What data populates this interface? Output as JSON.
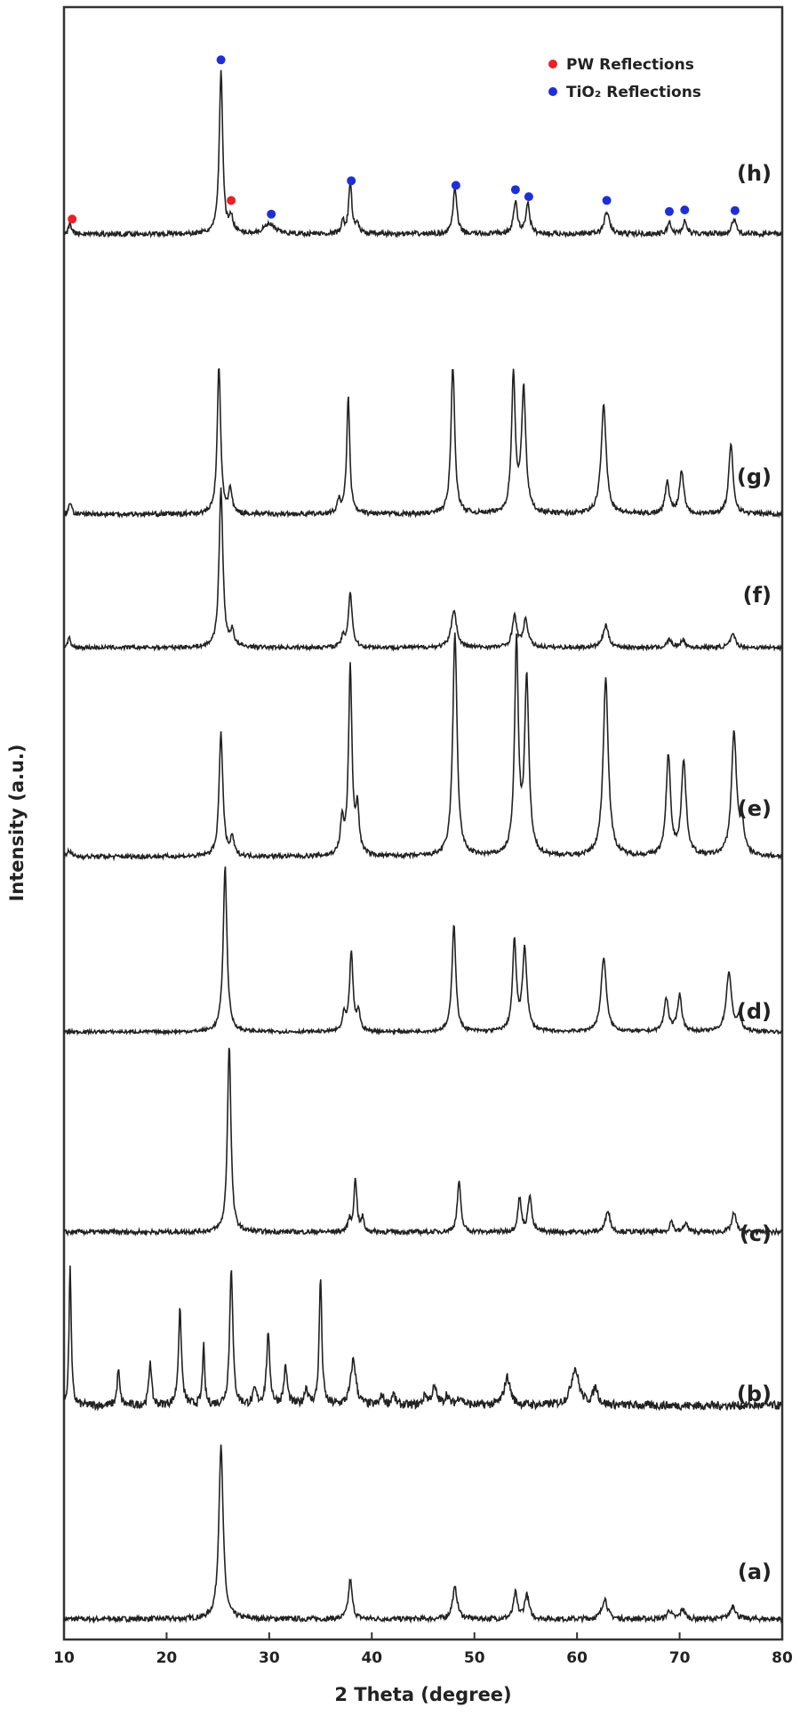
{
  "chart_data": {
    "type": "line",
    "xlabel": "2 Theta (degree)",
    "ylabel": "Intensity (a.u.)",
    "xlim": [
      10,
      80
    ],
    "x_ticks": [
      "10",
      "20",
      "30",
      "40",
      "50",
      "60",
      "70",
      "80"
    ],
    "grid": false,
    "legend_position": "top-right",
    "legend": [
      {
        "label": "PW Reflections",
        "color": "#e8202a"
      },
      {
        "label": "TiO₂ Reflections",
        "color": "#1f2fd6"
      }
    ],
    "series": [
      {
        "name": "(a)",
        "baseline": 0.06,
        "scale": 1.6,
        "peaks": [
          [
            25.3,
            1.0,
            0.25
          ],
          [
            37.9,
            0.23,
            0.22
          ],
          [
            48.1,
            0.18,
            0.28
          ],
          [
            54.0,
            0.15,
            0.22
          ],
          [
            55.1,
            0.14,
            0.25
          ],
          [
            62.7,
            0.12,
            0.3
          ],
          [
            69.0,
            0.05,
            0.25
          ],
          [
            70.3,
            0.06,
            0.25
          ],
          [
            75.2,
            0.08,
            0.3
          ]
        ]
      },
      {
        "name": "(b)",
        "baseline": 0.12,
        "scale": 1.0,
        "peaks": [
          [
            10.6,
            1.0,
            0.12
          ],
          [
            15.3,
            0.25,
            0.15
          ],
          [
            18.4,
            0.32,
            0.15
          ],
          [
            21.3,
            0.66,
            0.18
          ],
          [
            23.6,
            0.42,
            0.12
          ],
          [
            26.3,
            0.98,
            0.18
          ],
          [
            28.6,
            0.1,
            0.2
          ],
          [
            29.9,
            0.48,
            0.2
          ],
          [
            31.6,
            0.26,
            0.2
          ],
          [
            33.6,
            0.12,
            0.2
          ],
          [
            35.0,
            0.9,
            0.15
          ],
          [
            38.2,
            0.32,
            0.3
          ],
          [
            41.0,
            0.07,
            0.2
          ],
          [
            42.1,
            0.08,
            0.2
          ],
          [
            45.2,
            0.07,
            0.2
          ],
          [
            46.1,
            0.12,
            0.3
          ],
          [
            47.3,
            0.07,
            0.2
          ],
          [
            48.6,
            0.06,
            0.3
          ],
          [
            53.2,
            0.2,
            0.35
          ],
          [
            59.8,
            0.26,
            0.45
          ],
          [
            61.8,
            0.12,
            0.3
          ]
        ]
      },
      {
        "name": "(c)",
        "baseline": 0.05,
        "scale": 1.3,
        "peaks": [
          [
            26.1,
            1.0,
            0.2
          ],
          [
            37.8,
            0.06,
            0.15
          ],
          [
            38.4,
            0.28,
            0.18
          ],
          [
            39.1,
            0.07,
            0.15
          ],
          [
            48.5,
            0.27,
            0.2
          ],
          [
            54.4,
            0.18,
            0.2
          ],
          [
            55.4,
            0.2,
            0.2
          ],
          [
            63.0,
            0.12,
            0.25
          ],
          [
            69.2,
            0.06,
            0.2
          ],
          [
            70.6,
            0.05,
            0.2
          ],
          [
            75.3,
            0.1,
            0.25
          ]
        ]
      },
      {
        "name": "(d)",
        "baseline": 0.04,
        "scale": 1.45,
        "peaks": [
          [
            25.7,
            1.0,
            0.22
          ],
          [
            37.3,
            0.1,
            0.18
          ],
          [
            38.0,
            0.48,
            0.2
          ],
          [
            38.7,
            0.12,
            0.18
          ],
          [
            48.0,
            0.65,
            0.22
          ],
          [
            53.9,
            0.54,
            0.22
          ],
          [
            54.9,
            0.5,
            0.25
          ],
          [
            62.6,
            0.45,
            0.3
          ],
          [
            68.7,
            0.2,
            0.25
          ],
          [
            70.0,
            0.22,
            0.25
          ],
          [
            74.8,
            0.36,
            0.3
          ],
          [
            75.8,
            0.08,
            0.25
          ]
        ]
      },
      {
        "name": "(e)",
        "baseline": 0.04,
        "scale": 1.5,
        "peaks": [
          [
            10.5,
            0.03,
            0.2
          ],
          [
            25.3,
            0.55,
            0.22
          ],
          [
            26.4,
            0.08,
            0.2
          ],
          [
            37.1,
            0.15,
            0.2
          ],
          [
            37.9,
            0.85,
            0.2
          ],
          [
            38.6,
            0.2,
            0.2
          ],
          [
            48.1,
            1.0,
            0.25
          ],
          [
            54.1,
            0.95,
            0.22
          ],
          [
            55.1,
            0.78,
            0.25
          ],
          [
            62.8,
            0.8,
            0.3
          ],
          [
            68.9,
            0.45,
            0.25
          ],
          [
            70.4,
            0.42,
            0.28
          ],
          [
            75.3,
            0.55,
            0.3
          ],
          [
            76.1,
            0.12,
            0.25
          ]
        ]
      },
      {
        "name": "(f)",
        "baseline": 0.05,
        "scale": 1.6,
        "peaks": [
          [
            10.5,
            0.06,
            0.15
          ],
          [
            25.3,
            1.0,
            0.22
          ],
          [
            26.4,
            0.1,
            0.2
          ],
          [
            37.2,
            0.06,
            0.2
          ],
          [
            37.9,
            0.35,
            0.22
          ],
          [
            48.0,
            0.24,
            0.3
          ],
          [
            53.9,
            0.2,
            0.25
          ],
          [
            55.0,
            0.17,
            0.28
          ],
          [
            62.8,
            0.14,
            0.32
          ],
          [
            69.0,
            0.05,
            0.25
          ],
          [
            70.3,
            0.05,
            0.25
          ],
          [
            75.2,
            0.08,
            0.3
          ]
        ]
      },
      {
        "name": "(g)",
        "baseline": 0.06,
        "scale": 1.55,
        "peaks": [
          [
            10.6,
            0.08,
            0.15
          ],
          [
            25.1,
            0.95,
            0.2
          ],
          [
            26.2,
            0.15,
            0.2
          ],
          [
            36.8,
            0.08,
            0.2
          ],
          [
            37.7,
            0.75,
            0.18
          ],
          [
            47.9,
            0.95,
            0.22
          ],
          [
            53.8,
            0.88,
            0.22
          ],
          [
            54.8,
            0.8,
            0.25
          ],
          [
            62.6,
            0.7,
            0.3
          ],
          [
            68.8,
            0.2,
            0.25
          ],
          [
            70.2,
            0.28,
            0.25
          ],
          [
            75.0,
            0.45,
            0.25
          ]
        ]
      },
      {
        "name": "(h)",
        "baseline": 0.06,
        "scale": 1.45,
        "peaks": [
          [
            10.6,
            0.07,
            0.15
          ],
          [
            25.3,
            1.0,
            0.2
          ],
          [
            26.3,
            0.1,
            0.2
          ],
          [
            30.0,
            0.06,
            0.6
          ],
          [
            37.2,
            0.07,
            0.18
          ],
          [
            37.9,
            0.33,
            0.18
          ],
          [
            38.6,
            0.06,
            0.18
          ],
          [
            48.1,
            0.28,
            0.22
          ],
          [
            54.0,
            0.2,
            0.22
          ],
          [
            55.2,
            0.19,
            0.22
          ],
          [
            62.9,
            0.14,
            0.28
          ],
          [
            69.0,
            0.07,
            0.22
          ],
          [
            70.5,
            0.08,
            0.22
          ],
          [
            75.3,
            0.09,
            0.25
          ]
        ]
      }
    ],
    "markers": {
      "series": "(h)",
      "PW": [
        10.8,
        26.3
      ],
      "TiO2": [
        25.3,
        30.2,
        38.0,
        48.2,
        54.0,
        55.3,
        62.9,
        69.0,
        70.5,
        75.4
      ]
    }
  }
}
